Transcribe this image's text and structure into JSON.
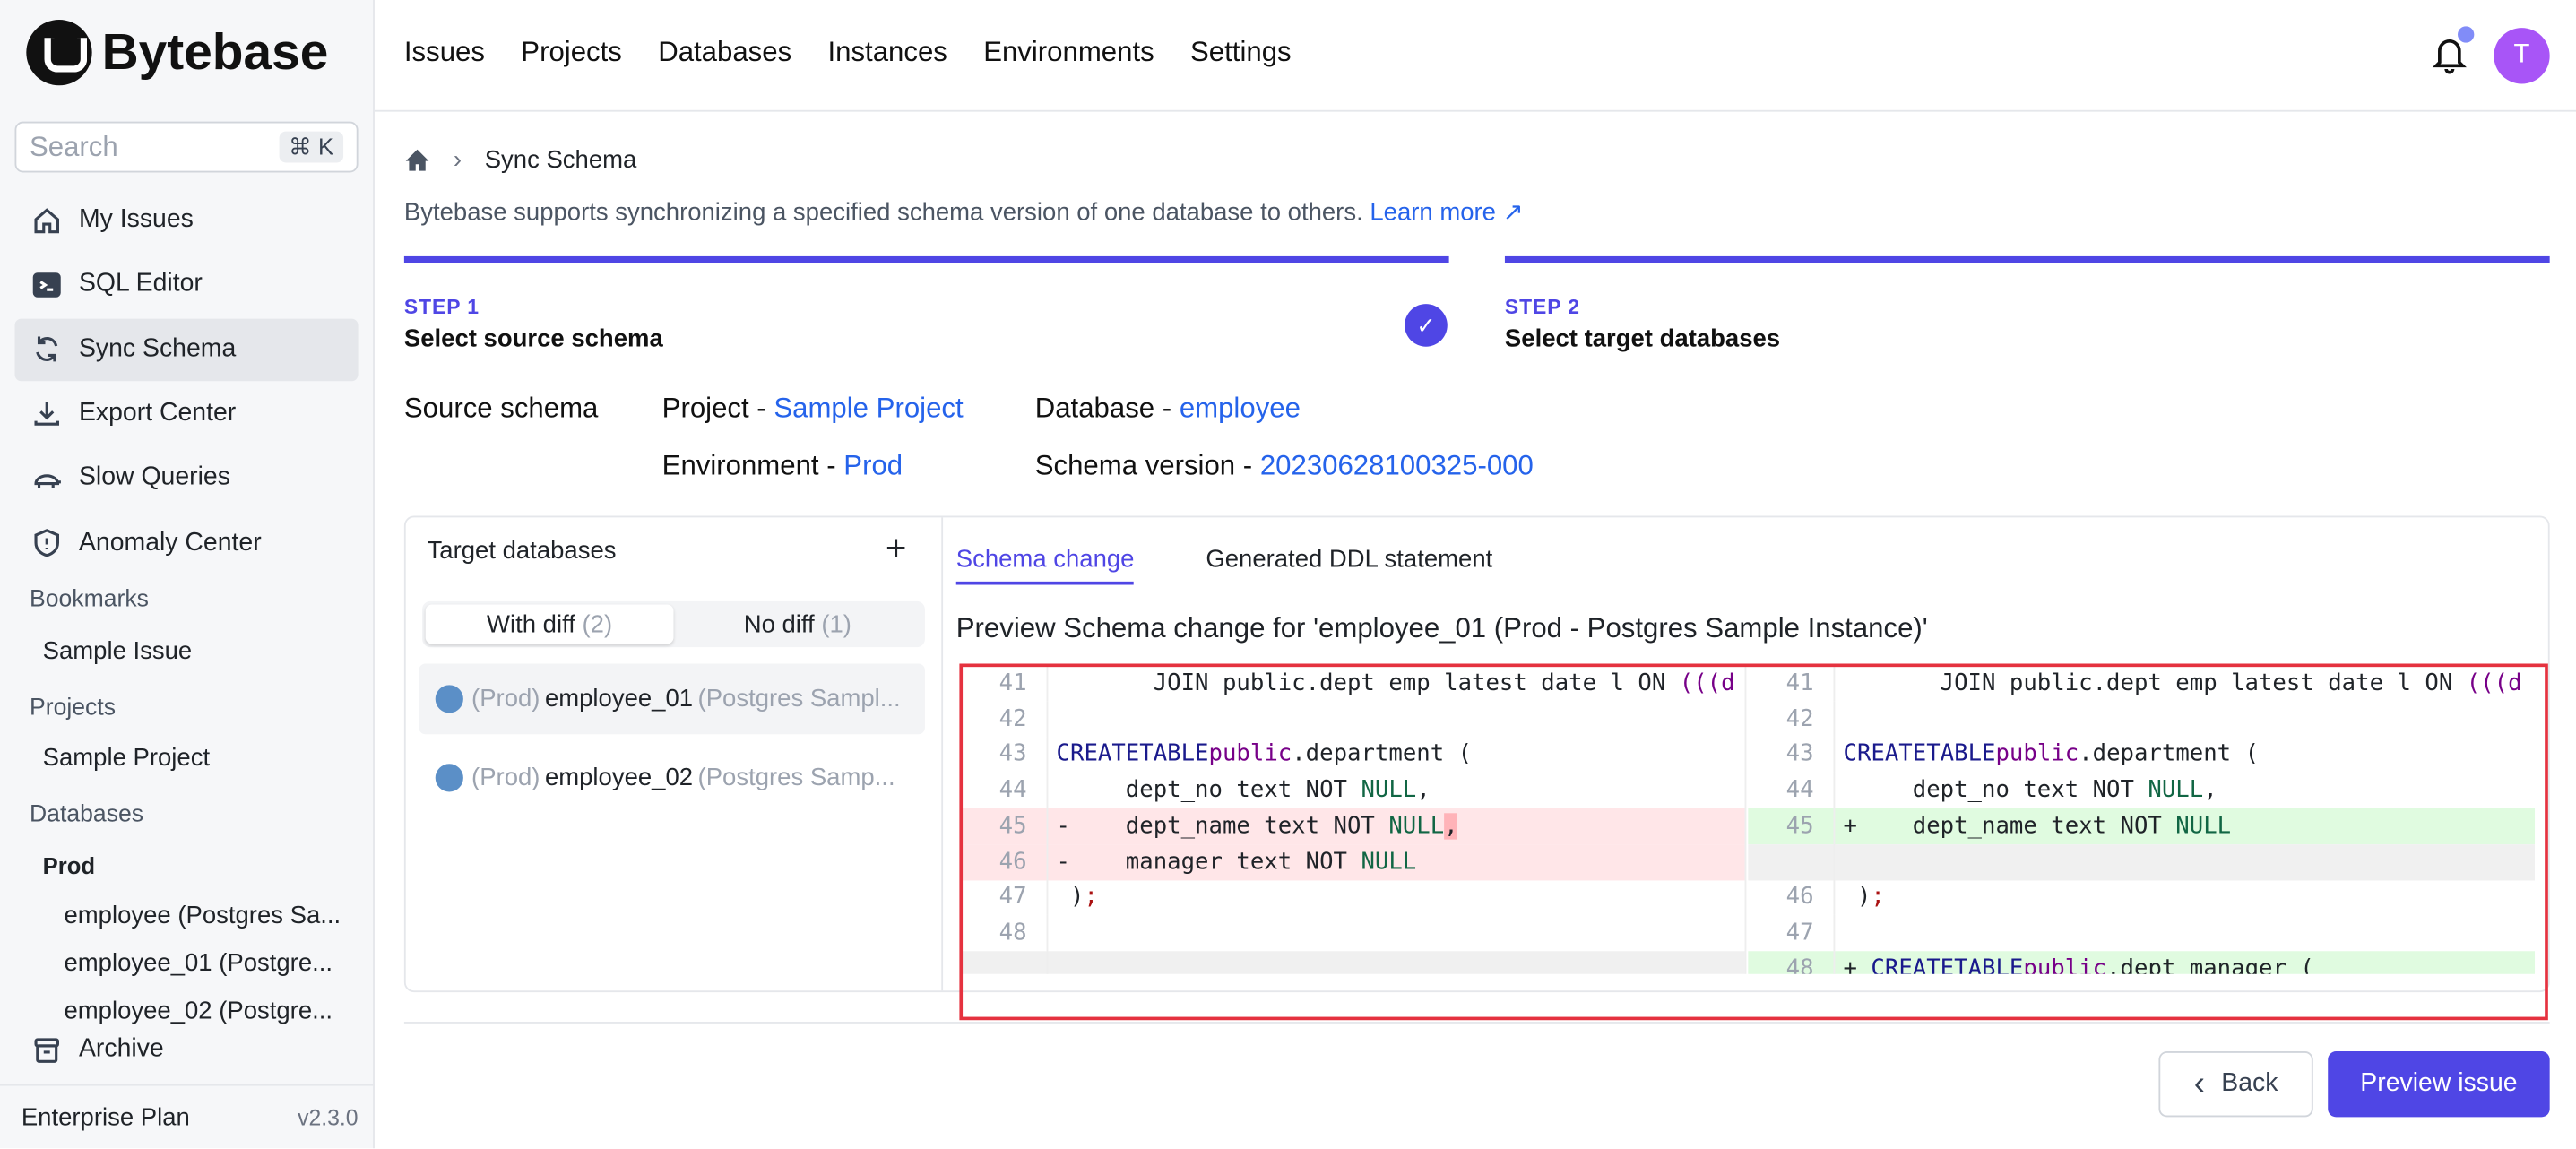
{
  "app": {
    "brand": "Bytebase",
    "search_placeholder": "Search",
    "search_shortcut": "⌘ K",
    "plan": "Enterprise Plan",
    "version": "v2.3.0",
    "avatar_initial": "T"
  },
  "sidebar": {
    "items": [
      {
        "label": "My Issues",
        "icon": "home-icon"
      },
      {
        "label": "SQL Editor",
        "icon": "terminal-icon"
      },
      {
        "label": "Sync Schema",
        "icon": "sync-icon",
        "active": true
      },
      {
        "label": "Export Center",
        "icon": "download-icon"
      },
      {
        "label": "Slow Queries",
        "icon": "turtle-icon"
      },
      {
        "label": "Anomaly Center",
        "icon": "shield-icon"
      }
    ],
    "bookmarks_title": "Bookmarks",
    "bookmarks": [
      "Sample Issue"
    ],
    "projects_title": "Projects",
    "projects": [
      "Sample Project"
    ],
    "databases_title": "Databases",
    "env": "Prod",
    "databases": [
      "employee (Postgres Sa...",
      "employee_01 (Postgre...",
      "employee_02 (Postgre..."
    ],
    "archive": "Archive"
  },
  "topnav": [
    "Issues",
    "Projects",
    "Databases",
    "Instances",
    "Environments",
    "Settings"
  ],
  "breadcrumb": {
    "current": "Sync Schema"
  },
  "description": "Bytebase supports synchronizing a specified schema version of one database to others.",
  "learn_more": "Learn more",
  "steps": [
    {
      "no": "STEP 1",
      "title": "Select source schema"
    },
    {
      "no": "STEP 2",
      "title": "Select target databases"
    }
  ],
  "source": {
    "label": "Source schema",
    "project_label": "Project - ",
    "project": "Sample Project",
    "database_label": "Database - ",
    "database": "employee",
    "env_label": "Environment - ",
    "env": "Prod",
    "version_label": "Schema version - ",
    "version": "20230628100325-000"
  },
  "targets": {
    "title": "Target databases",
    "with_diff": "With diff",
    "with_diff_count": "(2)",
    "no_diff": "No diff",
    "no_diff_count": "(1)",
    "items": [
      {
        "env": "(Prod)",
        "name": "employee_01",
        "instance": "(Postgres Sampl..."
      },
      {
        "env": "(Prod)",
        "name": "employee_02",
        "instance": "(Postgres Samp..."
      }
    ]
  },
  "tabs": [
    "Schema change",
    "Generated DDL statement"
  ],
  "preview_title": "Preview Schema change for 'employee_01 (Prod - Postgres Sample Instance)'",
  "buttons": {
    "back": "Back",
    "preview": "Preview issue"
  },
  "colors": {
    "accent": "#4f46e5",
    "link": "#2563eb",
    "highlight_box": "#e5323f",
    "deleted": "#ffe6e8",
    "inserted": "#e0fbe0"
  }
}
